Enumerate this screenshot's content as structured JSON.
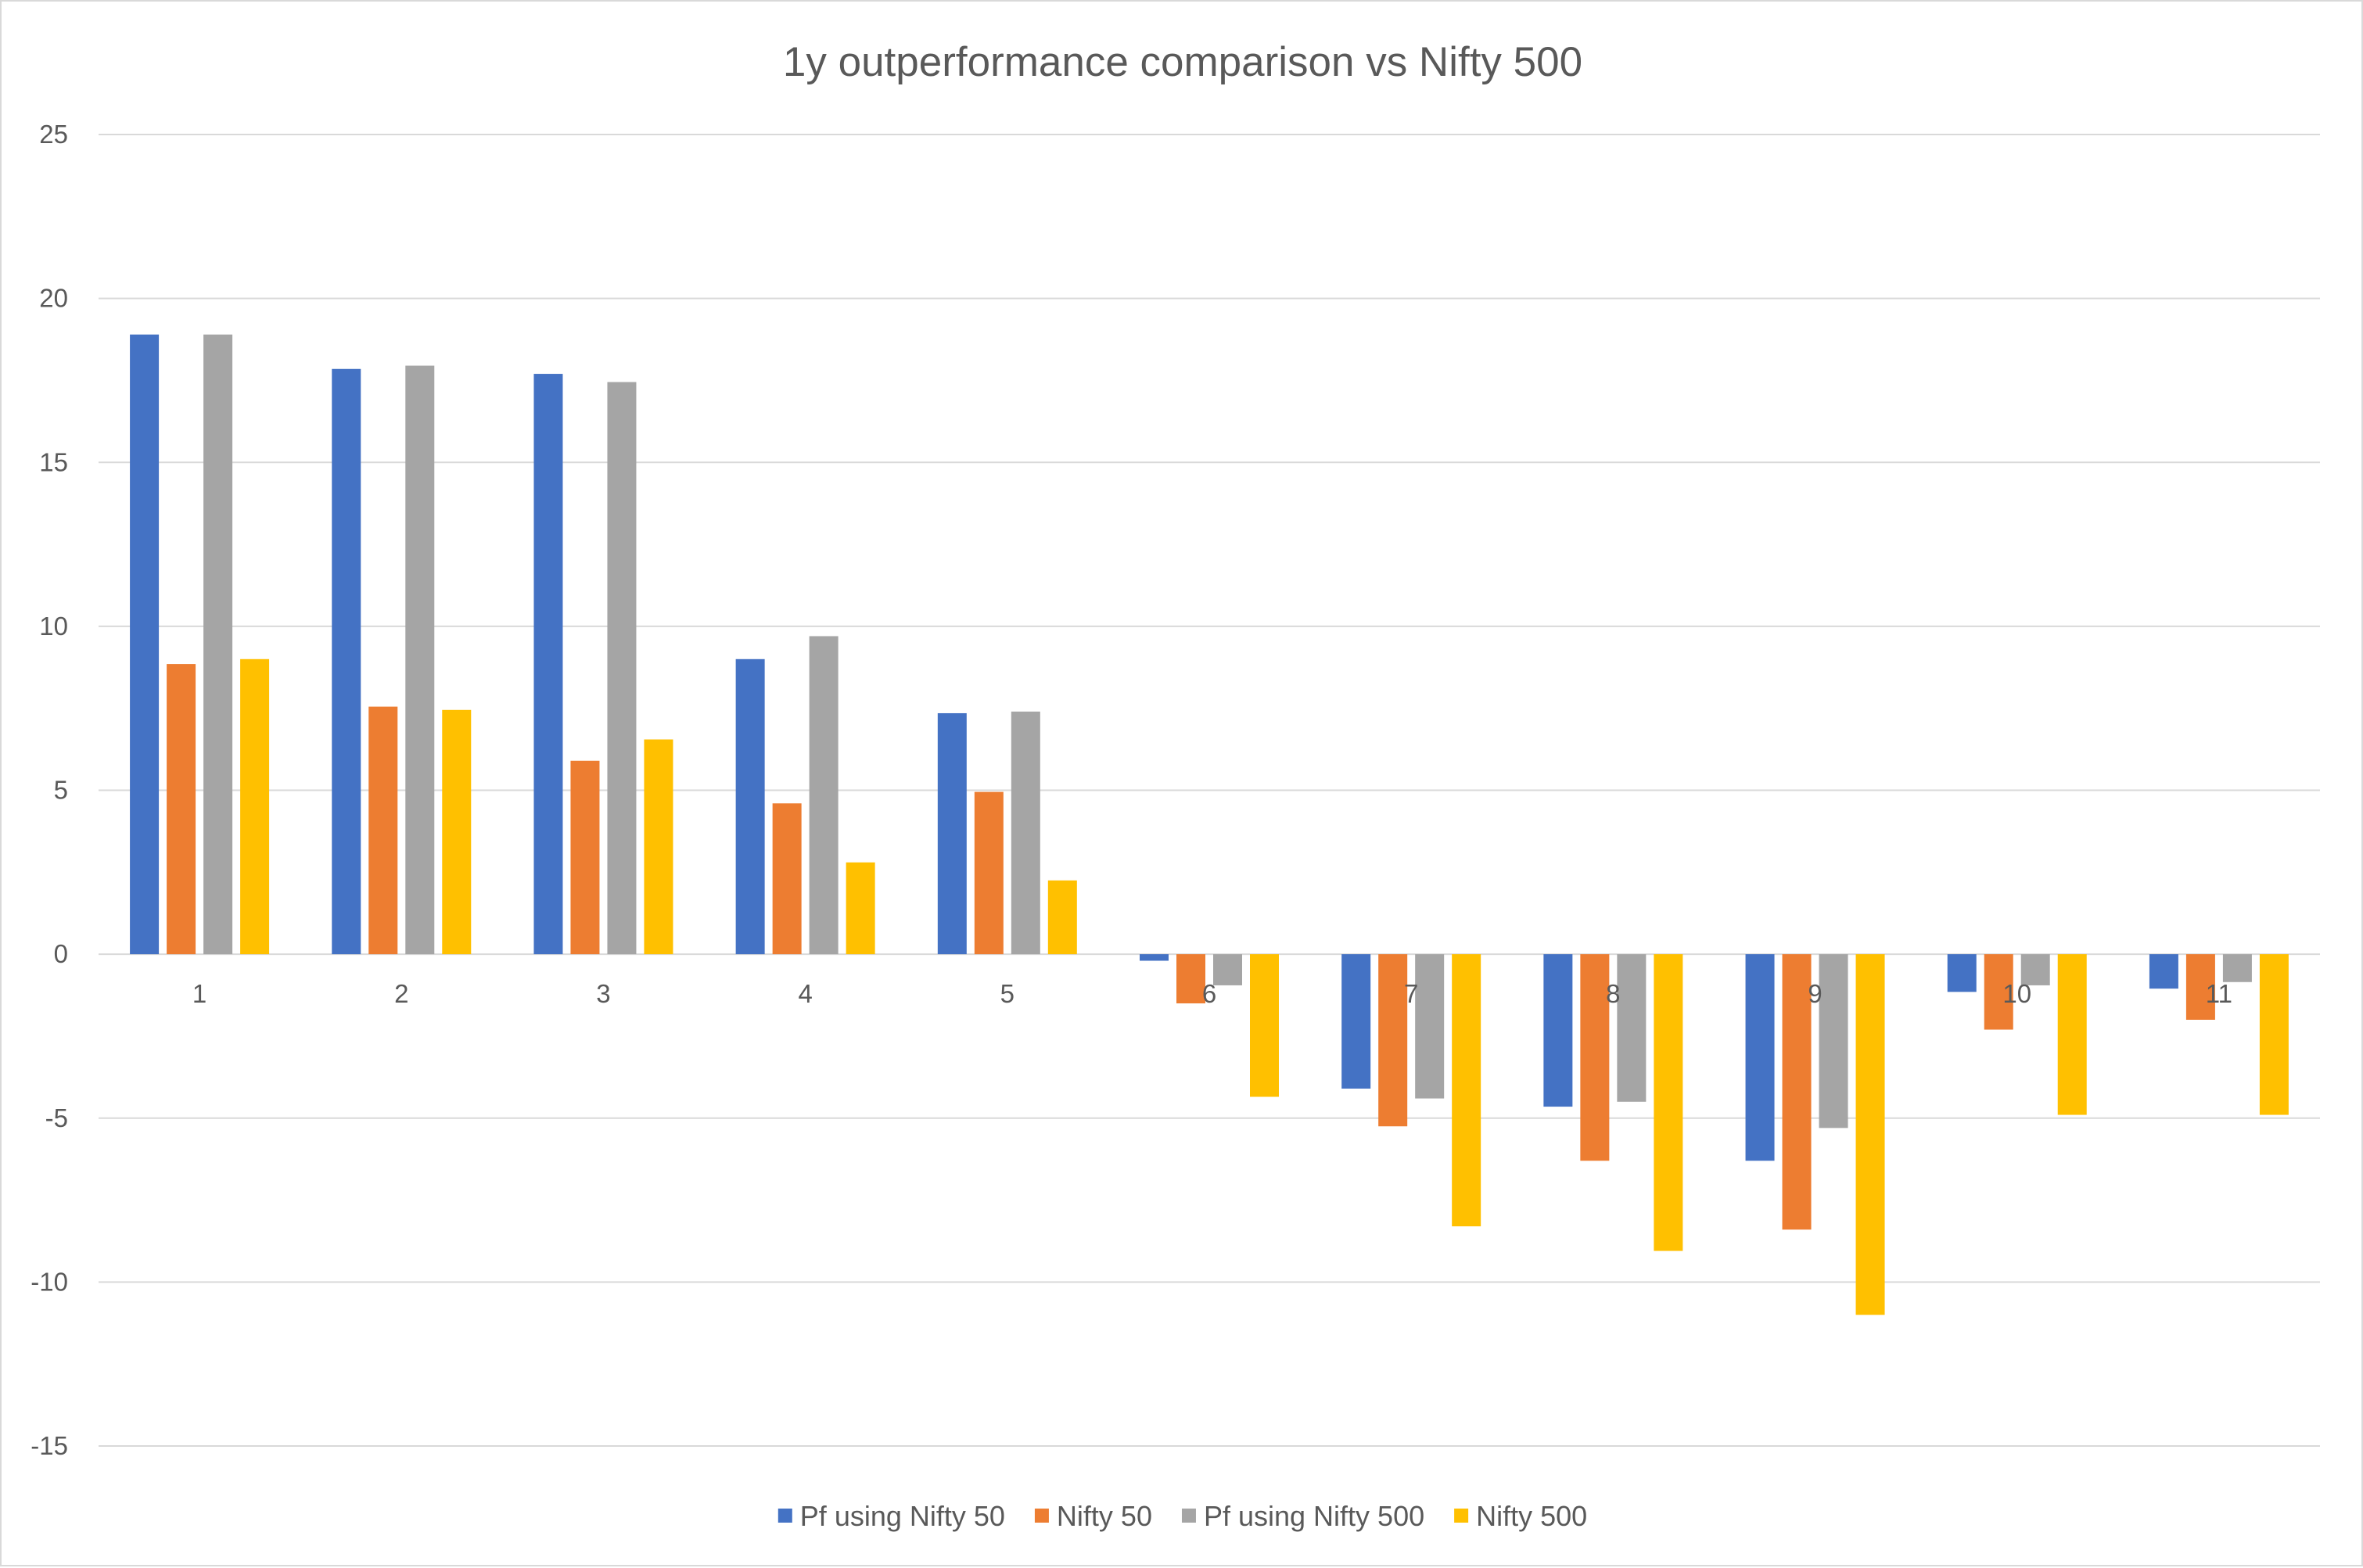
{
  "chart_data": {
    "type": "bar",
    "title": "1y outperformance comparison vs Nifty 500",
    "xlabel": "",
    "ylabel": "",
    "ylim": [
      -15,
      25
    ],
    "y_ticks": [
      25,
      20,
      15,
      10,
      5,
      0,
      -5,
      -10,
      -15
    ],
    "grid": true,
    "legend_position": "bottom",
    "categories": [
      "1",
      "2",
      "3",
      "4",
      "5",
      "6",
      "7",
      "8",
      "9",
      "10",
      "11"
    ],
    "series": [
      {
        "name": "Pf using Nifty 50",
        "color": "#4472c4",
        "values": [
          18.9,
          17.85,
          17.7,
          9.0,
          7.35,
          -0.2,
          -4.1,
          -4.65,
          -6.3,
          -1.15,
          -1.05
        ]
      },
      {
        "name": "Nifty 50",
        "color": "#ed7d31",
        "values": [
          8.85,
          7.55,
          5.9,
          4.6,
          4.95,
          -1.5,
          -5.25,
          -6.3,
          -8.4,
          -2.3,
          -2.0
        ]
      },
      {
        "name": "Pf using Nifty 500",
        "color": "#a5a5a5",
        "values": [
          18.9,
          17.95,
          17.45,
          9.7,
          7.4,
          -0.95,
          -4.4,
          -4.5,
          -5.3,
          -0.95,
          -0.85
        ]
      },
      {
        "name": "Nifty 500",
        "color": "#ffc000",
        "values": [
          9.0,
          7.45,
          6.55,
          2.8,
          2.25,
          -4.35,
          -8.3,
          -9.05,
          -11.0,
          -4.9,
          -4.9
        ]
      }
    ]
  }
}
